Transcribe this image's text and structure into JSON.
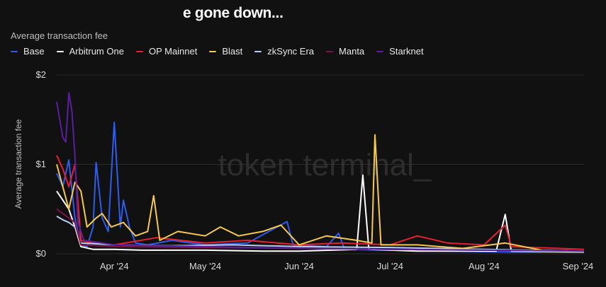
{
  "header": {
    "title": "e gone down...",
    "subtitle": "Average transaction fee"
  },
  "legend": [
    {
      "name": "Base",
      "color": "#2d5cf0"
    },
    {
      "name": "Arbitrum One",
      "color": "#ffffff"
    },
    {
      "name": "OP Mainnet",
      "color": "#e8202f"
    },
    {
      "name": "Blast",
      "color": "#f6c94d"
    },
    {
      "name": "zkSync Era",
      "color": "#b9cdf5"
    },
    {
      "name": "Manta",
      "color": "#7a1448"
    },
    {
      "name": "Starknet",
      "color": "#5a1f9c"
    }
  ],
  "watermark": "token terminal_",
  "chart_data": {
    "type": "line",
    "title": "",
    "xlabel": "",
    "ylabel": "Average transaction fee",
    "ylim": [
      0,
      2
    ],
    "y_ticks": [
      {
        "value": 0,
        "label": "$0"
      },
      {
        "value": 1,
        "label": "$1"
      },
      {
        "value": 2,
        "label": "$2"
      }
    ],
    "x_ticks": [
      {
        "date": "2024-04-01",
        "label": "Apr '24"
      },
      {
        "date": "2024-05-01",
        "label": "May '24"
      },
      {
        "date": "2024-06-01",
        "label": "Jun '24"
      },
      {
        "date": "2024-07-01",
        "label": "Jul '24"
      },
      {
        "date": "2024-08-01",
        "label": "Aug '24"
      },
      {
        "date": "2024-09-01",
        "label": "Sep '24"
      }
    ],
    "x_range": [
      "2024-03-13",
      "2024-09-03"
    ],
    "grid": true,
    "legend_position": "top-left",
    "series": [
      {
        "name": "Base",
        "color": "#2d5cf0",
        "points": [
          [
            "2024-03-13",
            0.9
          ],
          [
            "2024-03-15",
            0.75
          ],
          [
            "2024-03-17",
            1.05
          ],
          [
            "2024-03-19",
            0.4
          ],
          [
            "2024-03-21",
            0.1
          ],
          [
            "2024-03-23",
            0.08
          ],
          [
            "2024-03-25",
            0.3
          ],
          [
            "2024-03-26",
            1.02
          ],
          [
            "2024-03-28",
            0.4
          ],
          [
            "2024-03-30",
            0.25
          ],
          [
            "2024-04-01",
            1.47
          ],
          [
            "2024-04-03",
            0.3
          ],
          [
            "2024-04-04",
            0.6
          ],
          [
            "2024-04-06",
            0.3
          ],
          [
            "2024-04-08",
            0.12
          ],
          [
            "2024-04-12",
            0.1
          ],
          [
            "2024-04-20",
            0.15
          ],
          [
            "2024-05-01",
            0.1
          ],
          [
            "2024-05-15",
            0.12
          ],
          [
            "2024-05-28",
            0.36
          ],
          [
            "2024-05-30",
            0.1
          ],
          [
            "2024-06-10",
            0.08
          ],
          [
            "2024-06-14",
            0.23
          ],
          [
            "2024-06-16",
            0.05
          ],
          [
            "2024-07-01",
            0.04
          ],
          [
            "2024-07-20",
            0.03
          ],
          [
            "2024-08-10",
            0.02
          ],
          [
            "2024-09-03",
            0.02
          ]
        ]
      },
      {
        "name": "Arbitrum One",
        "color": "#ffffff",
        "points": [
          [
            "2024-03-13",
            0.7
          ],
          [
            "2024-03-15",
            0.6
          ],
          [
            "2024-03-17",
            0.5
          ],
          [
            "2024-03-19",
            0.3
          ],
          [
            "2024-03-21",
            0.08
          ],
          [
            "2024-03-25",
            0.05
          ],
          [
            "2024-04-01",
            0.05
          ],
          [
            "2024-04-10",
            0.04
          ],
          [
            "2024-05-01",
            0.04
          ],
          [
            "2024-05-20",
            0.03
          ],
          [
            "2024-06-01",
            0.03
          ],
          [
            "2024-06-20",
            0.05
          ],
          [
            "2024-06-22",
            0.88
          ],
          [
            "2024-06-24",
            0.05
          ],
          [
            "2024-07-10",
            0.03
          ],
          [
            "2024-08-05",
            0.03
          ],
          [
            "2024-08-08",
            0.44
          ],
          [
            "2024-08-10",
            0.03
          ],
          [
            "2024-09-03",
            0.02
          ]
        ]
      },
      {
        "name": "OP Mainnet",
        "color": "#e8202f",
        "points": [
          [
            "2024-03-13",
            1.1
          ],
          [
            "2024-03-15",
            0.95
          ],
          [
            "2024-03-17",
            0.75
          ],
          [
            "2024-03-19",
            1.0
          ],
          [
            "2024-03-21",
            0.15
          ],
          [
            "2024-03-25",
            0.12
          ],
          [
            "2024-04-01",
            0.1
          ],
          [
            "2024-04-15",
            0.18
          ],
          [
            "2024-05-01",
            0.12
          ],
          [
            "2024-05-15",
            0.15
          ],
          [
            "2024-06-01",
            0.1
          ],
          [
            "2024-06-15",
            0.12
          ],
          [
            "2024-07-01",
            0.1
          ],
          [
            "2024-07-10",
            0.2
          ],
          [
            "2024-07-20",
            0.12
          ],
          [
            "2024-08-01",
            0.1
          ],
          [
            "2024-08-08",
            0.32
          ],
          [
            "2024-08-10",
            0.08
          ],
          [
            "2024-09-03",
            0.05
          ]
        ]
      },
      {
        "name": "Blast",
        "color": "#f6c94d",
        "points": [
          [
            "2024-03-13",
            1.0
          ],
          [
            "2024-03-15",
            0.75
          ],
          [
            "2024-03-17",
            0.5
          ],
          [
            "2024-03-19",
            0.8
          ],
          [
            "2024-03-21",
            0.7
          ],
          [
            "2024-03-23",
            0.3
          ],
          [
            "2024-03-26",
            0.4
          ],
          [
            "2024-03-28",
            0.45
          ],
          [
            "2024-03-31",
            0.3
          ],
          [
            "2024-04-04",
            0.35
          ],
          [
            "2024-04-08",
            0.2
          ],
          [
            "2024-04-12",
            0.25
          ],
          [
            "2024-04-14",
            0.65
          ],
          [
            "2024-04-16",
            0.15
          ],
          [
            "2024-04-22",
            0.25
          ],
          [
            "2024-05-01",
            0.2
          ],
          [
            "2024-05-06",
            0.3
          ],
          [
            "2024-05-12",
            0.2
          ],
          [
            "2024-05-20",
            0.25
          ],
          [
            "2024-05-26",
            0.32
          ],
          [
            "2024-06-01",
            0.1
          ],
          [
            "2024-06-10",
            0.2
          ],
          [
            "2024-06-20",
            0.15
          ],
          [
            "2024-06-25",
            0.12
          ],
          [
            "2024-06-26",
            1.33
          ],
          [
            "2024-06-28",
            0.1
          ],
          [
            "2024-07-10",
            0.1
          ],
          [
            "2024-07-25",
            0.06
          ],
          [
            "2024-08-08",
            0.12
          ],
          [
            "2024-08-20",
            0.04
          ],
          [
            "2024-09-03",
            0.03
          ]
        ]
      },
      {
        "name": "zkSync Era",
        "color": "#b9cdf5",
        "points": [
          [
            "2024-03-13",
            0.42
          ],
          [
            "2024-03-15",
            0.38
          ],
          [
            "2024-03-17",
            0.35
          ],
          [
            "2024-03-19",
            0.3
          ],
          [
            "2024-03-21",
            0.12
          ],
          [
            "2024-04-01",
            0.1
          ],
          [
            "2024-04-20",
            0.09
          ],
          [
            "2024-05-10",
            0.1
          ],
          [
            "2024-06-01",
            0.08
          ],
          [
            "2024-07-01",
            0.07
          ],
          [
            "2024-08-01",
            0.05
          ],
          [
            "2024-09-03",
            0.03
          ]
        ]
      },
      {
        "name": "Manta",
        "color": "#7a1448",
        "points": [
          [
            "2024-03-13",
            0.5
          ],
          [
            "2024-03-15",
            0.45
          ],
          [
            "2024-03-17",
            0.4
          ],
          [
            "2024-03-19",
            0.35
          ],
          [
            "2024-03-21",
            0.1
          ],
          [
            "2024-04-01",
            0.08
          ],
          [
            "2024-05-01",
            0.07
          ],
          [
            "2024-06-01",
            0.06
          ],
          [
            "2024-07-01",
            0.05
          ],
          [
            "2024-08-01",
            0.04
          ],
          [
            "2024-09-03",
            0.03
          ]
        ]
      },
      {
        "name": "Starknet",
        "color": "#5a1f9c",
        "points": [
          [
            "2024-03-13",
            1.7
          ],
          [
            "2024-03-14",
            1.5
          ],
          [
            "2024-03-15",
            1.3
          ],
          [
            "2024-03-16",
            1.25
          ],
          [
            "2024-03-17",
            1.8
          ],
          [
            "2024-03-18",
            1.6
          ],
          [
            "2024-03-19",
            1.1
          ],
          [
            "2024-03-20",
            0.35
          ],
          [
            "2024-03-22",
            0.15
          ],
          [
            "2024-04-01",
            0.1
          ],
          [
            "2024-05-01",
            0.08
          ],
          [
            "2024-06-01",
            0.06
          ],
          [
            "2024-07-01",
            0.05
          ],
          [
            "2024-08-01",
            0.04
          ],
          [
            "2024-09-03",
            0.03
          ]
        ]
      }
    ]
  }
}
